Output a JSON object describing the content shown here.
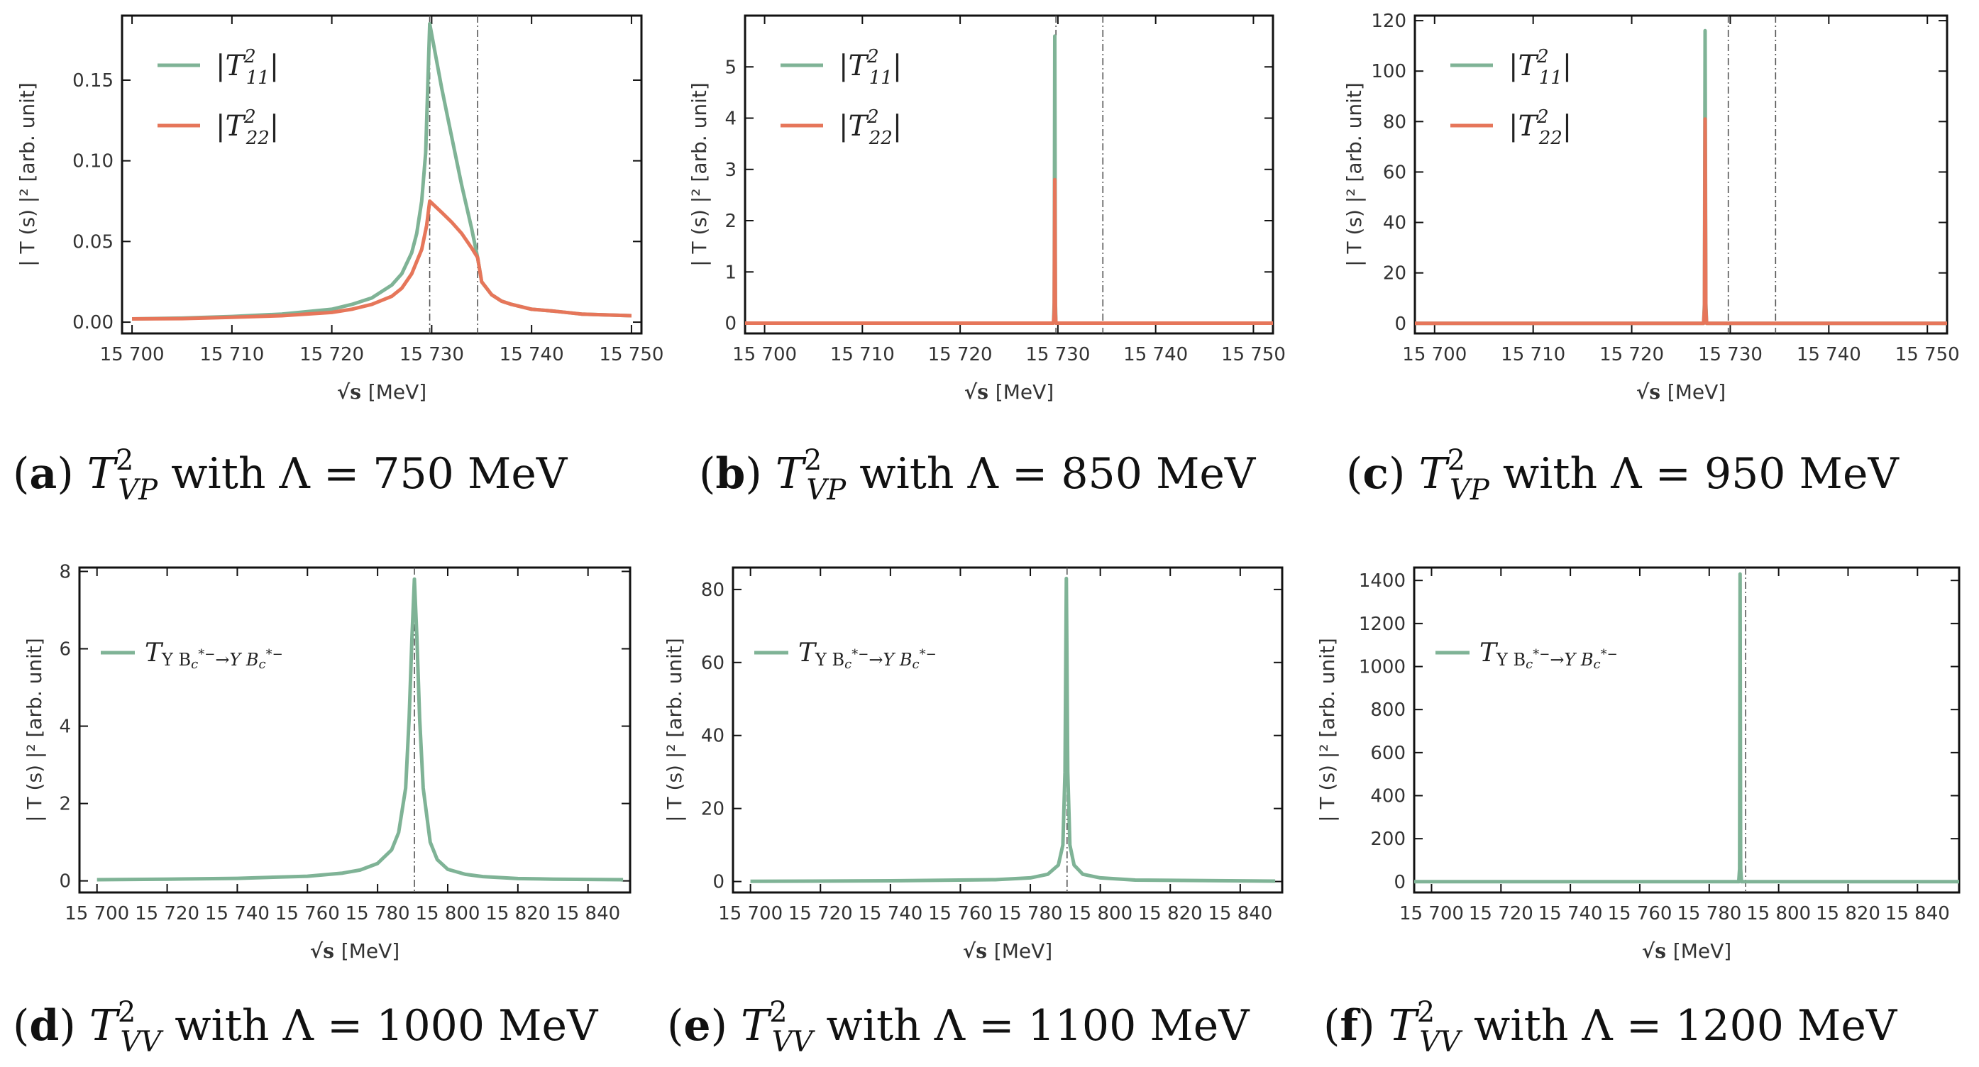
{
  "figure": {
    "panels": [
      {
        "label": "a",
        "caption": "T²_VP with Λ = 750 MeV",
        "caption_text": "with Λ = 750 MeV",
        "ylabel": "| T (s) |² [arb. unit]",
        "xlabel": "[MeV]",
        "legend": [
          "|T²₁₁|",
          "|T²₂₂|"
        ],
        "chart_type": "line"
      },
      {
        "label": "b",
        "caption": "T²_VP with Λ = 850 MeV",
        "caption_text": "with Λ = 850 MeV",
        "ylabel": "| T (s) |² [arb. unit]",
        "xlabel": "[MeV]",
        "legend": [
          "|T²₁₁|",
          "|T²₂₂|"
        ],
        "chart_type": "line"
      },
      {
        "label": "c",
        "caption": "T²_VP with Λ = 950 MeV",
        "caption_text": "with Λ = 950 MeV",
        "ylabel": "| T (s) |² [arb. unit]",
        "xlabel": "[MeV]",
        "legend": [
          "|T²₁₁|",
          "|T²₂₂|"
        ],
        "chart_type": "line"
      },
      {
        "label": "d",
        "caption": "T²_VV with Λ = 1000 MeV",
        "caption_text": "with Λ = 1000 MeV",
        "ylabel": "| T (s) |² [arb. unit]",
        "xlabel": "[MeV]",
        "legend": [
          "TΥ Bc*⁻→Υ Bc*⁻"
        ],
        "chart_type": "line"
      },
      {
        "label": "e",
        "caption": "T²_VV with Λ = 1100 MeV",
        "caption_text": "with Λ = 1100 MeV",
        "ylabel": "| T (s) |² [arb. unit]",
        "xlabel": "[MeV]",
        "legend": [
          "TΥ Bc*⁻→Υ Bc*⁻"
        ],
        "chart_type": "line"
      },
      {
        "label": "f",
        "caption": "T²_VV with Λ = 1200 MeV",
        "caption_text": "with Λ = 1200 MeV",
        "ylabel": "| T (s) |² [arb. unit]",
        "xlabel": "[MeV]",
        "legend": [
          "TΥ Bc*⁻→Υ Bc*⁻"
        ],
        "chart_type": "line"
      }
    ]
  },
  "colors": {
    "green": "#7fb396",
    "orange": "#e6765a",
    "frame": "#111111",
    "tick_text": "#333333"
  },
  "chart_data": [
    {
      "type": "line",
      "title": "T²_VP with Λ = 750 MeV",
      "xlabel": "√s [MeV]",
      "ylabel": "| T (s) |² [arb. unit]",
      "xlim": [
        15699,
        15751
      ],
      "ylim": [
        -0.007,
        0.19
      ],
      "xticks": [
        15700,
        15710,
        15720,
        15730,
        15740,
        15750
      ],
      "yticks": [
        0.0,
        0.05,
        0.1,
        0.15
      ],
      "ytick_labels": [
        "0.00",
        "0.05",
        "0.10",
        "0.15"
      ],
      "xtick_labels": [
        "15 700",
        "15 710",
        "15 720",
        "15 730",
        "15 740",
        "15 750"
      ],
      "thresholds": [
        15729.8,
        15734.6
      ],
      "legend_position": "top-left",
      "series": [
        {
          "name": "|T²₁₁|",
          "color": "#7fb396",
          "x": [
            15700,
            15705,
            15710,
            15715,
            15720,
            15722,
            15724,
            15726,
            15727,
            15728,
            15728.5,
            15729,
            15729.4,
            15729.8,
            15731,
            15732,
            15733,
            15734,
            15734.6,
            15735,
            15736,
            15737,
            15738,
            15740,
            15742,
            15745,
            15750
          ],
          "y": [
            0.002,
            0.0025,
            0.0035,
            0.005,
            0.008,
            0.011,
            0.015,
            0.023,
            0.03,
            0.043,
            0.055,
            0.075,
            0.105,
            0.185,
            0.145,
            0.115,
            0.085,
            0.058,
            0.04,
            0.025,
            0.017,
            0.013,
            0.011,
            0.008,
            0.007,
            0.005,
            0.004
          ]
        },
        {
          "name": "|T²₂₂|",
          "color": "#e6765a",
          "x": [
            15700,
            15705,
            15710,
            15715,
            15720,
            15722,
            15724,
            15726,
            15727,
            15728,
            15729,
            15729.5,
            15729.8,
            15731,
            15732,
            15733,
            15734,
            15734.6,
            15735,
            15736,
            15737,
            15738,
            15740,
            15742,
            15745,
            15750
          ],
          "y": [
            0.002,
            0.0022,
            0.003,
            0.004,
            0.006,
            0.008,
            0.011,
            0.016,
            0.021,
            0.03,
            0.045,
            0.06,
            0.075,
            0.068,
            0.062,
            0.055,
            0.046,
            0.04,
            0.025,
            0.017,
            0.013,
            0.011,
            0.008,
            0.007,
            0.005,
            0.004
          ]
        }
      ]
    },
    {
      "type": "line",
      "title": "T²_VP with Λ = 850 MeV",
      "xlabel": "√s [MeV]",
      "ylabel": "| T (s) |² [arb. unit]",
      "xlim": [
        15698,
        15752
      ],
      "ylim": [
        -0.2,
        6.0
      ],
      "xticks": [
        15700,
        15710,
        15720,
        15730,
        15740,
        15750
      ],
      "xtick_labels": [
        "15 700",
        "15 710",
        "15 720",
        "15 730",
        "15 740",
        "15 750"
      ],
      "yticks": [
        0,
        1,
        2,
        3,
        4,
        5
      ],
      "ytick_labels": [
        "0",
        "1",
        "2",
        "3",
        "4",
        "5"
      ],
      "thresholds": [
        15729.8,
        15734.6
      ],
      "legend_position": "top-left",
      "series": [
        {
          "name": "|T²₁₁|",
          "color": "#7fb396",
          "x": [
            15698,
            15729.55,
            15729.62,
            15729.68,
            15729.75,
            15729.8,
            15752
          ],
          "y": [
            0,
            0,
            0.4,
            5.6,
            0.4,
            0,
            0
          ]
        },
        {
          "name": "|T²₂₂|",
          "color": "#e6765a",
          "x": [
            15698,
            15729.55,
            15729.62,
            15729.68,
            15729.75,
            15729.8,
            15752
          ],
          "y": [
            0,
            0,
            0.2,
            2.8,
            0.2,
            0,
            0
          ]
        }
      ]
    },
    {
      "type": "line",
      "title": "T²_VP with Λ = 950 MeV",
      "xlabel": "√s [MeV]",
      "ylabel": "| T (s) |² [arb. unit]",
      "xlim": [
        15698,
        15752
      ],
      "ylim": [
        -4,
        122
      ],
      "xticks": [
        15700,
        15710,
        15720,
        15730,
        15740,
        15750
      ],
      "xtick_labels": [
        "15 700",
        "15 710",
        "15 720",
        "15 730",
        "15 740",
        "15 750"
      ],
      "yticks": [
        0,
        20,
        40,
        60,
        80,
        100,
        120
      ],
      "ytick_labels": [
        "0",
        "20",
        "40",
        "60",
        "80",
        "100",
        "120"
      ],
      "thresholds": [
        15729.8,
        15734.6
      ],
      "legend_position": "top-left",
      "series": [
        {
          "name": "|T²₁₁|",
          "color": "#7fb396",
          "x": [
            15698,
            15727.3,
            15727.38,
            15727.45,
            15727.52,
            15727.6,
            15752
          ],
          "y": [
            0,
            0,
            8,
            116,
            8,
            0,
            0
          ]
        },
        {
          "name": "|T²₂₂|",
          "color": "#e6765a",
          "x": [
            15698,
            15727.3,
            15727.38,
            15727.45,
            15727.52,
            15727.6,
            15752
          ],
          "y": [
            0,
            0,
            6,
            81,
            6,
            0,
            0
          ]
        }
      ]
    },
    {
      "type": "line",
      "title": "T²_VV with Λ = 1000 MeV",
      "xlabel": "√s [MeV]",
      "ylabel": "| T (s) |² [arb. unit]",
      "xlim": [
        15695,
        15852
      ],
      "ylim": [
        -0.3,
        8.1
      ],
      "xticks": [
        15700,
        15720,
        15740,
        15760,
        15780,
        15800,
        15820,
        15840
      ],
      "xtick_labels": [
        "15 700",
        "15 720",
        "15 740",
        "15 760",
        "15 780",
        "15 800",
        "15 820",
        "15 840"
      ],
      "yticks": [
        0,
        2,
        4,
        6,
        8
      ],
      "ytick_labels": [
        "0",
        "2",
        "4",
        "6",
        "8"
      ],
      "thresholds": [
        15790.5
      ],
      "legend_position": "upper-left",
      "series": [
        {
          "name": "TΥ Bc*⁻→Υ Bc*⁻",
          "color": "#7fb396",
          "x": [
            15700,
            15720,
            15740,
            15760,
            15770,
            15775,
            15780,
            15784,
            15786,
            15788,
            15789,
            15789.8,
            15790.5,
            15791.2,
            15792,
            15793,
            15795,
            15797,
            15800,
            15805,
            15810,
            15820,
            15830,
            15850
          ],
          "y": [
            0.03,
            0.045,
            0.065,
            0.12,
            0.2,
            0.28,
            0.45,
            0.8,
            1.25,
            2.4,
            4.2,
            6.3,
            7.8,
            6.3,
            4.2,
            2.4,
            1.0,
            0.55,
            0.3,
            0.17,
            0.11,
            0.06,
            0.045,
            0.03
          ]
        }
      ]
    },
    {
      "type": "line",
      "title": "T²_VV with Λ = 1100 MeV",
      "xlabel": "√s [MeV]",
      "ylabel": "| T (s) |² [arb. unit]",
      "xlim": [
        15695,
        15852
      ],
      "ylim": [
        -3,
        86
      ],
      "xticks": [
        15700,
        15720,
        15740,
        15760,
        15780,
        15800,
        15820,
        15840
      ],
      "xtick_labels": [
        "15 700",
        "15 720",
        "15 740",
        "15 760",
        "15 780",
        "15 800",
        "15 820",
        "15 840"
      ],
      "yticks": [
        0,
        20,
        40,
        60,
        80
      ],
      "ytick_labels": [
        "0",
        "20",
        "40",
        "60",
        "80"
      ],
      "thresholds": [
        15790.5
      ],
      "legend_position": "upper-left",
      "series": [
        {
          "name": "TΥ Bc*⁻→Υ Bc*⁻",
          "color": "#7fb396",
          "x": [
            15700,
            15740,
            15770,
            15780,
            15785,
            15788,
            15789.3,
            15789.9,
            15790.3,
            15790.7,
            15791.3,
            15792.5,
            15795,
            15800,
            15810,
            15850
          ],
          "y": [
            0.05,
            0.2,
            0.5,
            1.0,
            2.0,
            4.5,
            10,
            30,
            83,
            30,
            10,
            4.5,
            2.0,
            1.0,
            0.4,
            0.1
          ]
        }
      ]
    },
    {
      "type": "line",
      "title": "T²_VV with Λ = 1200 MeV",
      "xlabel": "√s [MeV]",
      "ylabel": "| T (s) |² [arb. unit]",
      "xlim": [
        15695,
        15852
      ],
      "ylim": [
        -50,
        1460
      ],
      "xticks": [
        15700,
        15720,
        15740,
        15760,
        15780,
        15800,
        15820,
        15840
      ],
      "xtick_labels": [
        "15 700",
        "15 720",
        "15 740",
        "15 760",
        "15 780",
        "15 800",
        "15 820",
        "15 840"
      ],
      "yticks": [
        0,
        200,
        400,
        600,
        800,
        1000,
        1200,
        1400
      ],
      "ytick_labels": [
        "0",
        "200",
        "400",
        "600",
        "800",
        "1000",
        "1200",
        "1400"
      ],
      "thresholds": [
        15790.5
      ],
      "legend_position": "upper-left",
      "series": [
        {
          "name": "TΥ Bc*⁻→Υ Bc*⁻",
          "color": "#7fb396",
          "x": [
            15695,
            15788.5,
            15788.75,
            15788.9,
            15789.05,
            15789.3,
            15852
          ],
          "y": [
            0,
            0,
            60,
            1430,
            60,
            0,
            0
          ]
        }
      ]
    }
  ]
}
